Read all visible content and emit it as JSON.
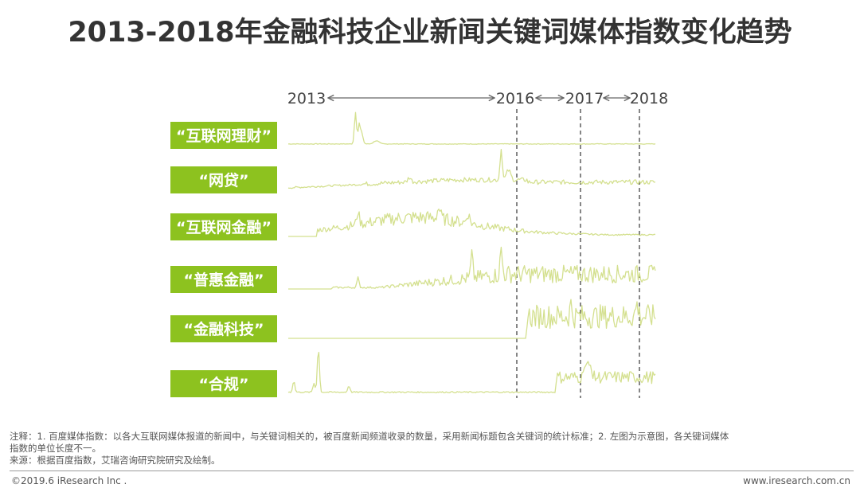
{
  "title": "2013-2018年金融科技企业新闻关键词媒体指数变化趋势",
  "chart_data": {
    "type": "line",
    "years": [
      "2013",
      "2016",
      "2017",
      "2018"
    ],
    "colors": {
      "label_bg": "#8DC21F",
      "line": "#D4E08F",
      "timeline": "#666666",
      "dash": "#444444"
    },
    "series": [
      {
        "name": "“互联网理财”",
        "profile": "spike-early"
      },
      {
        "name": "“网贷”",
        "profile": "rise-peak-2016"
      },
      {
        "name": "“互联网金融”",
        "profile": "hump-2014-2016"
      },
      {
        "name": "“普惠金融”",
        "profile": "grow-from-2015"
      },
      {
        "name": "“金融科技”",
        "profile": "start-2016-volatile"
      },
      {
        "name": "“合规”",
        "profile": "early-spike-then-2017"
      }
    ]
  },
  "notes": {
    "line1": "注释：1. 百度媒体指数：以各大互联网媒体报道的新闻中，与关键词相关的，被百度新闻频道收录的数量，采用新闻标题包含关键词的统计标准；2. 左图为示意图，各关键词媒体",
    "line2": "指数的单位长度不一。",
    "line3": "来源：根据百度指数，艾瑞咨询研究院研究及绘制。"
  },
  "footer": {
    "copyright": "©2019.6 iResearch Inc .",
    "website": "www.iresearch.com.cn"
  }
}
